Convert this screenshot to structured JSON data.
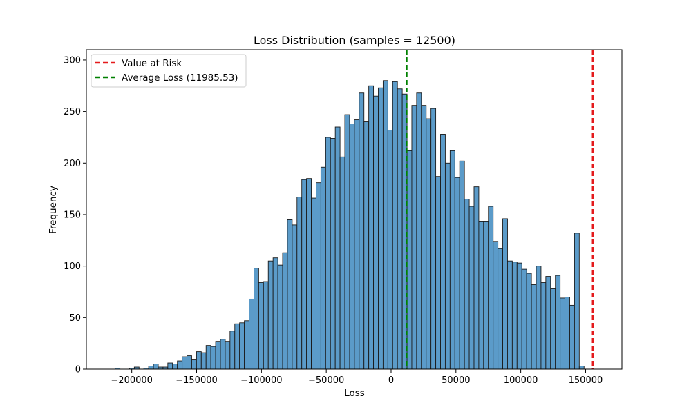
{
  "chart_data": {
    "type": "bar",
    "title": "Loss Distribution (samples = 12500)",
    "xlabel": "Loss",
    "ylabel": "Frequency",
    "xlim": [
      -235000,
      178000
    ],
    "ylim": [
      0,
      310
    ],
    "xticks": [
      -200000,
      -150000,
      -100000,
      -50000,
      0,
      50000,
      100000,
      150000
    ],
    "yticks": [
      0,
      50,
      100,
      150,
      200,
      250,
      300
    ],
    "bin_start": -212800,
    "bin_width": 3690,
    "bar_color": "#5b9bc9",
    "edge_color": "#1a1a1a",
    "values": [
      1,
      0,
      0,
      1,
      2,
      0,
      1,
      3,
      5,
      2,
      2,
      6,
      5,
      8,
      12,
      13,
      9,
      17,
      16,
      23,
      22,
      27,
      29,
      27,
      37,
      44,
      45,
      47,
      68,
      98,
      84,
      85,
      105,
      108,
      101,
      113,
      145,
      140,
      167,
      184,
      185,
      166,
      181,
      196,
      225,
      224,
      235,
      206,
      247,
      238,
      242,
      268,
      240,
      275,
      265,
      273,
      280,
      232,
      279,
      272,
      267,
      212,
      256,
      268,
      256,
      243,
      253,
      187,
      228,
      200,
      212,
      186,
      202,
      165,
      158,
      177,
      143,
      143,
      158,
      124,
      117,
      146,
      105,
      104,
      103,
      97,
      93,
      82,
      100,
      84,
      90,
      78,
      91,
      69,
      70,
      62,
      132,
      3
    ],
    "reference_lines": [
      {
        "name": "Value at Risk",
        "x": 155500,
        "color": "#e41a1c"
      },
      {
        "name": "Average Loss (11985.53)",
        "x": 11985.53,
        "color": "#008000"
      }
    ],
    "legend_position": "upper left",
    "grid": false
  }
}
